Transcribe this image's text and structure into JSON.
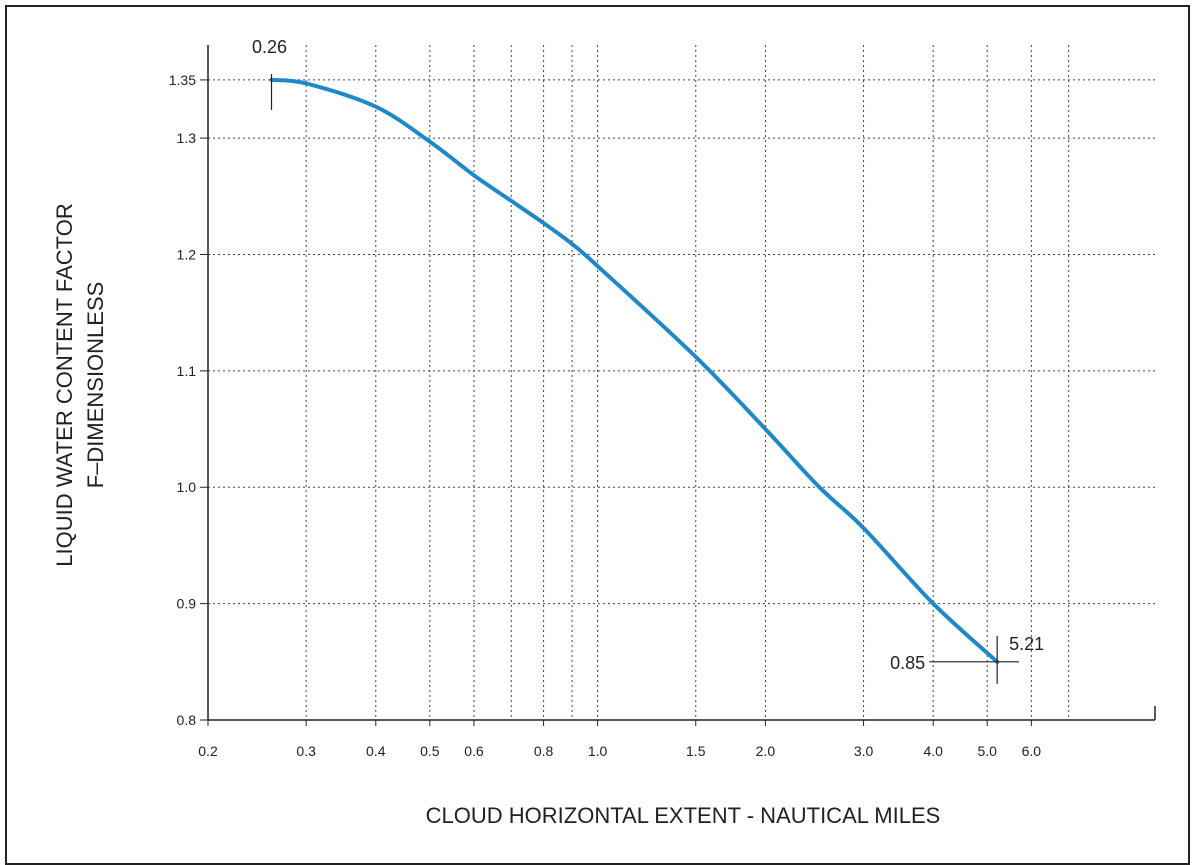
{
  "chart_data": {
    "type": "line",
    "xlabel": "CLOUD HORIZONTAL EXTENT - NAUTICAL MILES",
    "ylabel_line1": "LIQUID WATER CONTENT FACTOR",
    "ylabel_line2": "F–DIMENSIONLESS",
    "x_scale": "log",
    "xlim": [
      0.2,
      10.0
    ],
    "ylim": [
      0.8,
      1.38
    ],
    "grid": true,
    "x_ticks": [
      0.2,
      0.3,
      0.4,
      0.5,
      0.6,
      0.8,
      1.0,
      1.5,
      2.0,
      3.0,
      4.0,
      5.0,
      6.0
    ],
    "x_tick_labels": [
      "0.2",
      "0.3",
      "0.4",
      "0.5",
      "0.6",
      "0.8",
      "1.0",
      "1.5",
      "2.0",
      "3.0",
      "4.0",
      "5.0",
      "6.0"
    ],
    "x_minor_gridlines": [
      0.7,
      0.9,
      7.0
    ],
    "y_ticks": [
      0.8,
      0.9,
      1.0,
      1.1,
      1.2,
      1.3,
      1.35
    ],
    "y_tick_labels": [
      "0.8",
      "0.9",
      "1.0",
      "1.1",
      "1.2",
      "1.3",
      "1.35"
    ],
    "series": [
      {
        "color": "#1f88c8",
        "x": [
          0.26,
          0.3,
          0.4,
          0.5,
          0.6,
          0.7,
          0.8,
          0.9,
          1.0,
          1.5,
          2.0,
          2.5,
          3.0,
          4.0,
          5.21
        ],
        "y": [
          1.35,
          1.347,
          1.327,
          1.297,
          1.268,
          1.246,
          1.227,
          1.209,
          1.19,
          1.112,
          1.05,
          1.0,
          0.965,
          0.9,
          0.85
        ]
      }
    ],
    "annotations": [
      {
        "text": "0.26",
        "x": 0.26,
        "y": 1.35
      },
      {
        "text": "5.21",
        "x": 5.21,
        "y": 0.85
      },
      {
        "text": "0.85",
        "x": 5.21,
        "y": 0.85
      }
    ]
  }
}
